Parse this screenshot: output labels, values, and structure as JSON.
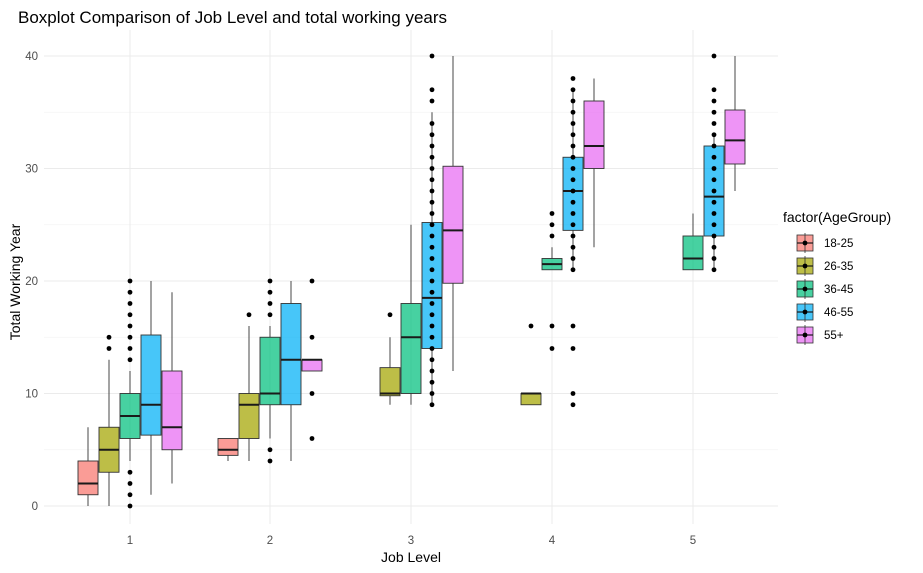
{
  "chart_data": {
    "type": "boxplot",
    "title": "Boxplot Comparison of Job Level and total working years",
    "xlabel": "Job Level",
    "ylabel": "Total Working Year",
    "categories": [
      "1",
      "2",
      "3",
      "4",
      "5"
    ],
    "ylim": [
      -2,
      42
    ],
    "yticks": [
      0,
      10,
      20,
      30,
      40
    ],
    "grid": true,
    "legend": {
      "title": "factor(AgeGroup)",
      "position": "right",
      "entries": [
        {
          "label": "18-25",
          "color": "#F8766D"
        },
        {
          "label": "26-35",
          "color": "#A3A500"
        },
        {
          "label": "36-45",
          "color": "#00BF7D"
        },
        {
          "label": "46-55",
          "color": "#00B0F6"
        },
        {
          "label": "55+",
          "color": "#E76BF3"
        }
      ]
    },
    "groups": [
      "18-25",
      "26-35",
      "36-45",
      "46-55",
      "55+"
    ],
    "boxes": [
      {
        "level": "1",
        "group": "18-25",
        "lower": 0,
        "q1": 1,
        "median": 2,
        "q3": 4,
        "upper": 7,
        "outliers": []
      },
      {
        "level": "1",
        "group": "26-35",
        "lower": 0,
        "q1": 3,
        "median": 5,
        "q3": 7,
        "upper": 13,
        "outliers": [
          14,
          15
        ]
      },
      {
        "level": "1",
        "group": "36-45",
        "lower": 4,
        "q1": 6,
        "median": 8,
        "q3": 10,
        "upper": 12,
        "outliers": [
          0,
          1,
          2,
          3,
          13,
          14,
          15,
          16,
          17,
          18,
          19,
          20
        ]
      },
      {
        "level": "1",
        "group": "46-55",
        "lower": 1,
        "q1": 6.3,
        "median": 9,
        "q3": 15.2,
        "upper": 20,
        "outliers": []
      },
      {
        "level": "1",
        "group": "55+",
        "lower": 2,
        "q1": 5,
        "median": 7,
        "q3": 12,
        "upper": 19,
        "outliers": []
      },
      {
        "level": "2",
        "group": "18-25",
        "lower": 4,
        "q1": 4.5,
        "median": 5,
        "q3": 6,
        "upper": 6,
        "outliers": []
      },
      {
        "level": "2",
        "group": "26-35",
        "lower": 4,
        "q1": 6,
        "median": 9,
        "q3": 10,
        "upper": 16,
        "outliers": [
          17
        ]
      },
      {
        "level": "2",
        "group": "36-45",
        "lower": 6,
        "q1": 9,
        "median": 10,
        "q3": 15,
        "upper": 16,
        "outliers": [
          4,
          5,
          17,
          18,
          19,
          20
        ]
      },
      {
        "level": "2",
        "group": "46-55",
        "lower": 4,
        "q1": 9,
        "median": 13,
        "q3": 18,
        "upper": 20,
        "outliers": []
      },
      {
        "level": "2",
        "group": "55+",
        "lower": 12,
        "q1": 12,
        "median": 13,
        "q3": 13,
        "upper": 13,
        "outliers": [
          6,
          10,
          15,
          20
        ]
      },
      {
        "level": "3",
        "group": "26-35",
        "lower": 9,
        "q1": 9.8,
        "median": 10,
        "q3": 12.3,
        "upper": 15,
        "outliers": [
          17
        ]
      },
      {
        "level": "3",
        "group": "36-45",
        "lower": 9,
        "q1": 10,
        "median": 15,
        "q3": 18,
        "upper": 25,
        "outliers": []
      },
      {
        "level": "3",
        "group": "46-55",
        "lower": 9,
        "q1": 14,
        "median": 18.5,
        "q3": 25.2,
        "upper": 35,
        "outliers": [
          9,
          10,
          11,
          12,
          13,
          14,
          15,
          16,
          17,
          18,
          19,
          20,
          21,
          22,
          23,
          24,
          25,
          26,
          27,
          28,
          29,
          30,
          31,
          32,
          33,
          34,
          36,
          37,
          40
        ]
      },
      {
        "level": "3",
        "group": "55+",
        "lower": 12,
        "q1": 19.8,
        "median": 24.5,
        "q3": 30.2,
        "upper": 40,
        "outliers": []
      },
      {
        "level": "4",
        "group": "26-35",
        "lower": 9,
        "q1": 9,
        "median": 10,
        "q3": 10,
        "upper": 10,
        "outliers": [
          16
        ]
      },
      {
        "level": "4",
        "group": "36-45",
        "lower": 21,
        "q1": 21,
        "median": 21.5,
        "q3": 22,
        "upper": 23,
        "outliers": [
          14,
          16,
          24,
          25,
          26
        ]
      },
      {
        "level": "4",
        "group": "46-55",
        "lower": 21,
        "q1": 24.5,
        "median": 28,
        "q3": 31,
        "upper": 37,
        "outliers": [
          9,
          10,
          14,
          16,
          21,
          22,
          23,
          24,
          25,
          26,
          27,
          28,
          29,
          30,
          31,
          32,
          33,
          34,
          35,
          36,
          37,
          38
        ]
      },
      {
        "level": "4",
        "group": "55+",
        "lower": 23,
        "q1": 30,
        "median": 32,
        "q3": 36,
        "upper": 38,
        "outliers": []
      },
      {
        "level": "5",
        "group": "36-45",
        "lower": 21,
        "q1": 21,
        "median": 22,
        "q3": 24,
        "upper": 26,
        "outliers": []
      },
      {
        "level": "5",
        "group": "46-55",
        "lower": 21,
        "q1": 24,
        "median": 27.5,
        "q3": 32,
        "upper": 33,
        "outliers": [
          21,
          22,
          23,
          24,
          25,
          26,
          27,
          28,
          29,
          30,
          31,
          32,
          33,
          34,
          35,
          36,
          37,
          40
        ]
      },
      {
        "level": "5",
        "group": "55+",
        "lower": 28,
        "q1": 30.4,
        "median": 32.5,
        "q3": 35.2,
        "upper": 40,
        "outliers": []
      }
    ]
  }
}
